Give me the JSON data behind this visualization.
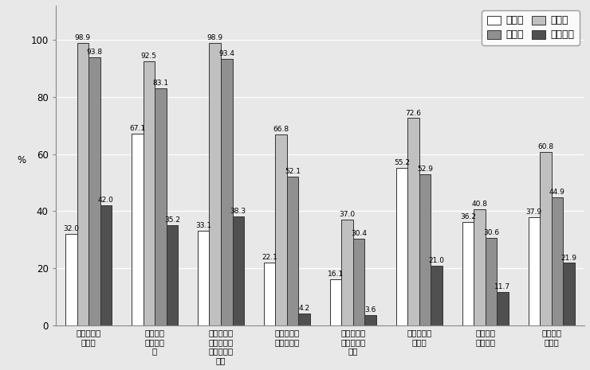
{
  "categories": [
    "校内委員会\nの設置",
    "発達障害\nの実態把\n握",
    "特別支援教\n育コーディ\nネーターの\n指名",
    "個別の指導\n計画の作成",
    "個別の教育\n支援計画の\n策定",
    "巡回相談員\nの活用",
    "専門チー\nムの活用",
    "教員研修\nの受講"
  ],
  "series": {
    "幼稚園": [
      32.0,
      67.1,
      33.1,
      22.1,
      16.1,
      55.2,
      36.2,
      37.9
    ],
    "小学校": [
      98.9,
      92.5,
      98.9,
      66.8,
      37.0,
      72.6,
      40.8,
      60.8
    ],
    "中学校": [
      93.8,
      83.1,
      93.4,
      52.1,
      30.4,
      52.9,
      30.6,
      44.9
    ],
    "高等学校": [
      42.0,
      35.2,
      38.3,
      4.2,
      3.6,
      21.0,
      11.7,
      21.9
    ]
  },
  "bar_colors": {
    "幼稚園": "#ffffff",
    "小学校": "#c0c0c0",
    "中学校": "#909090",
    "高等学校": "#505050"
  },
  "ylabel": "%",
  "ylim": [
    0,
    112
  ],
  "yticks": [
    0,
    20,
    40,
    60,
    80,
    100
  ],
  "background_color": "#e8e8e8",
  "plot_background": "#e8e8e8",
  "grid_color": "#ffffff",
  "value_fontsize": 6.5,
  "axis_fontsize": 8.5,
  "tick_fontsize": 8.5
}
